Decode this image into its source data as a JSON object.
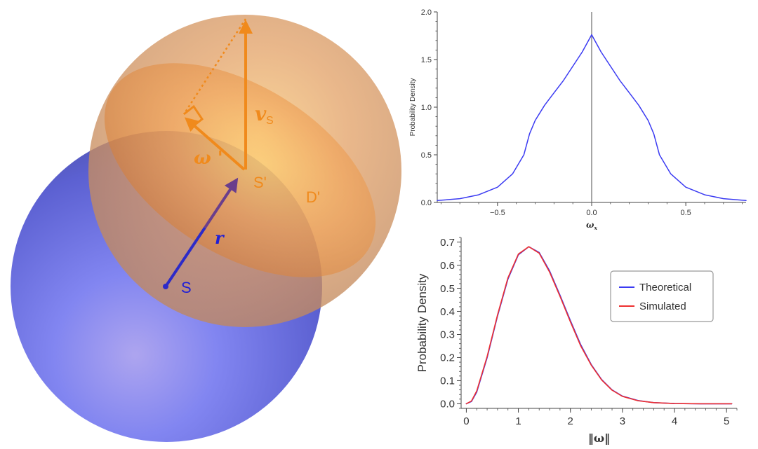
{
  "diagram": {
    "labels": {
      "vs_main": "v",
      "vs_sub": "S",
      "omega_prime": "ω '",
      "s_prime": "S'",
      "d_prime": "D'",
      "r": "r",
      "s": "S"
    },
    "colors": {
      "orange": "#f08a1c",
      "blue": "#1f1fd6",
      "blue_sphere": "#5a5ee0",
      "orange_sphere": "#d9935a",
      "purple_arrow": "#6a3e8c"
    }
  },
  "chart_data": [
    {
      "type": "line",
      "title": "",
      "xlabel": "ω",
      "xlabel_sub": "x",
      "ylabel": "Probability Density",
      "xlim": [
        -0.82,
        0.82
      ],
      "ylim": [
        0,
        2.0
      ],
      "xticks": [
        {
          "value": -0.5,
          "label": "−0.5"
        },
        {
          "value": 0.0,
          "label": "0.0"
        },
        {
          "value": 0.5,
          "label": "0.5"
        }
      ],
      "yticks": [
        {
          "value": 0.0,
          "label": "0.0"
        },
        {
          "value": 0.5,
          "label": "0.5"
        },
        {
          "value": 1.0,
          "label": "1.0"
        },
        {
          "value": 1.5,
          "label": "1.5"
        },
        {
          "value": 2.0,
          "label": "2.0"
        }
      ],
      "grid": false,
      "vertical_line_at": 0.0,
      "series": [
        {
          "color": "#3b3bf2",
          "x": [
            -0.82,
            -0.7,
            -0.6,
            -0.5,
            -0.42,
            -0.36,
            -0.33,
            -0.3,
            -0.25,
            -0.2,
            -0.15,
            -0.1,
            -0.05,
            0.0,
            0.05,
            0.1,
            0.15,
            0.2,
            0.25,
            0.3,
            0.33,
            0.36,
            0.42,
            0.5,
            0.6,
            0.7,
            0.82
          ],
          "y": [
            0.02,
            0.04,
            0.08,
            0.16,
            0.3,
            0.5,
            0.72,
            0.86,
            1.02,
            1.15,
            1.28,
            1.43,
            1.58,
            1.76,
            1.58,
            1.43,
            1.28,
            1.15,
            1.02,
            0.86,
            0.72,
            0.5,
            0.3,
            0.16,
            0.08,
            0.04,
            0.02
          ]
        }
      ]
    },
    {
      "type": "line",
      "title": "",
      "xlabel": "‖ω‖",
      "ylabel": "Probability Density",
      "xlim": [
        -0.1,
        5.2
      ],
      "ylim": [
        -0.02,
        0.72
      ],
      "xticks": [
        {
          "value": 0,
          "label": "0"
        },
        {
          "value": 1,
          "label": "1"
        },
        {
          "value": 2,
          "label": "2"
        },
        {
          "value": 3,
          "label": "3"
        },
        {
          "value": 4,
          "label": "4"
        },
        {
          "value": 5,
          "label": "5"
        }
      ],
      "yticks": [
        {
          "value": 0.0,
          "label": "0.0"
        },
        {
          "value": 0.1,
          "label": "0.1"
        },
        {
          "value": 0.2,
          "label": "0.2"
        },
        {
          "value": 0.3,
          "label": "0.3"
        },
        {
          "value": 0.4,
          "label": "0.4"
        },
        {
          "value": 0.5,
          "label": "0.5"
        },
        {
          "value": 0.6,
          "label": "0.6"
        },
        {
          "value": 0.7,
          "label": "0.7"
        }
      ],
      "grid": false,
      "legend_position": "top-right",
      "series": [
        {
          "name": "Theoretical",
          "color": "#3b3bf2",
          "x": [
            0,
            0.1,
            0.2,
            0.4,
            0.6,
            0.8,
            1.0,
            1.2,
            1.4,
            1.6,
            1.8,
            2.0,
            2.2,
            2.4,
            2.6,
            2.8,
            3.0,
            3.3,
            3.6,
            4.0,
            4.5,
            5.1
          ],
          "y": [
            0.0,
            0.01,
            0.05,
            0.2,
            0.38,
            0.54,
            0.645,
            0.68,
            0.655,
            0.575,
            0.47,
            0.36,
            0.255,
            0.17,
            0.105,
            0.06,
            0.033,
            0.014,
            0.005,
            0.001,
            0.0,
            0.0
          ]
        },
        {
          "name": "Simulated",
          "color": "#ee3030",
          "x": [
            0,
            0.1,
            0.2,
            0.4,
            0.6,
            0.8,
            1.0,
            1.2,
            1.4,
            1.6,
            1.8,
            2.0,
            2.2,
            2.4,
            2.6,
            2.8,
            3.0,
            3.3,
            3.6,
            4.0,
            4.5,
            5.1
          ],
          "y": [
            0.0,
            0.012,
            0.055,
            0.205,
            0.385,
            0.545,
            0.648,
            0.68,
            0.652,
            0.57,
            0.465,
            0.355,
            0.25,
            0.167,
            0.103,
            0.059,
            0.032,
            0.013,
            0.005,
            0.001,
            0.0,
            0.0
          ]
        }
      ]
    }
  ]
}
